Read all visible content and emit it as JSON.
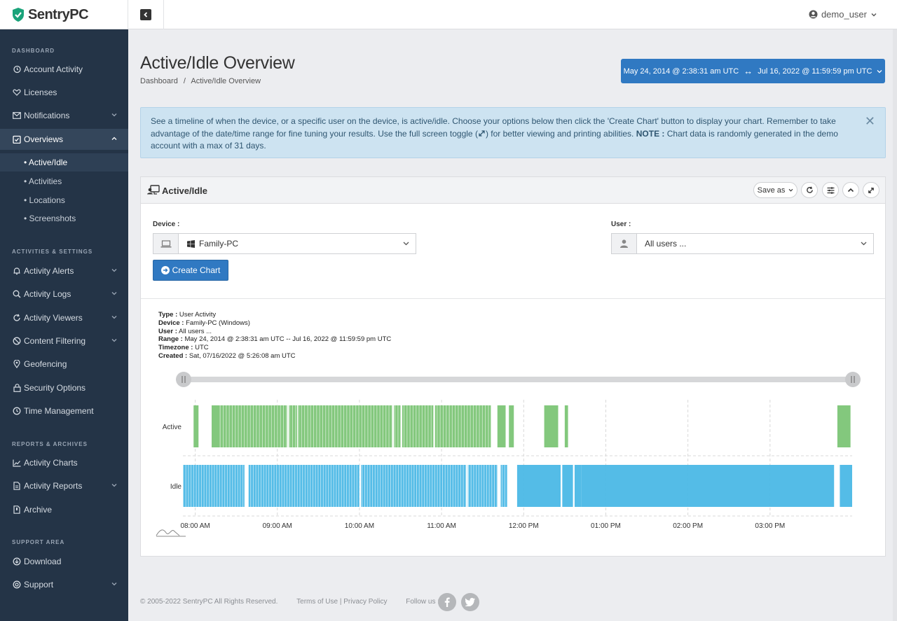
{
  "app": {
    "name": "SentryPC",
    "user": "demo_user"
  },
  "sidebar": {
    "sections": [
      "DASHBOARD",
      "ACTIVITIES & SETTINGS",
      "REPORTS & ARCHIVES",
      "SUPPORT AREA"
    ],
    "items": [
      {
        "label": "Account Activity",
        "icon": "history-icon"
      },
      {
        "label": "Licenses",
        "icon": "heart-icon"
      },
      {
        "label": "Notifications",
        "icon": "envelope-icon"
      },
      {
        "label": "Overviews",
        "icon": "clipboard-check-icon"
      },
      {
        "label": "Activity Alerts",
        "icon": "bell-icon"
      },
      {
        "label": "Activity Logs",
        "icon": "search-icon"
      },
      {
        "label": "Activity Viewers",
        "icon": "refresh-icon"
      },
      {
        "label": "Content Filtering",
        "icon": "ban-icon"
      },
      {
        "label": "Geofencing",
        "icon": "map-marker-icon"
      },
      {
        "label": "Security Options",
        "icon": "lock-icon"
      },
      {
        "label": "Time Management",
        "icon": "clock-icon"
      },
      {
        "label": "Activity Charts",
        "icon": "chart-line-icon"
      },
      {
        "label": "Activity Reports",
        "icon": "file-icon"
      },
      {
        "label": "Archive",
        "icon": "file-archive-icon"
      },
      {
        "label": "Download",
        "icon": "download-icon"
      },
      {
        "label": "Support",
        "icon": "support-icon"
      }
    ],
    "subitems": [
      "• Active/Idle",
      "• Activities",
      "• Locations",
      "• Screenshots"
    ]
  },
  "page": {
    "title": "Active/Idle Overview",
    "breadcrumb": [
      "Dashboard",
      "/",
      "Active/Idle Overview"
    ],
    "date_start": "May 24, 2014 @ 2:38:31 am UTC",
    "date_arrow": "↔",
    "date_end": "Jul 16, 2022 @ 11:59:59 pm UTC"
  },
  "alert": {
    "text1": "See a timeline of when the device, or a specific user on the device, is active/idle.  Choose your options below then click the 'Create Chart' button to display your chart.  Remember to take advantage of the date/time range for fine tuning your results.  Use the full screen toggle (",
    "text2": ") for better viewing and printing abilities.  ",
    "note_label": "NOTE :",
    "note_text": " Chart data is randomly generated in the demo account with a max of 31 days."
  },
  "panel": {
    "title": "Active/Idle",
    "save_as": "Save as",
    "device_label": "Device :",
    "device_value": "Family-PC",
    "user_label": "User :",
    "user_value": "All users ...",
    "create_button": "Create Chart"
  },
  "meta": [
    {
      "k": "Type :",
      "v": " User Activity"
    },
    {
      "k": "Device :",
      "v": " Family-PC (Windows)"
    },
    {
      "k": "User :",
      "v": " All users ..."
    },
    {
      "k": "Range :",
      "v": " May 24, 2014 @ 2:38:31 am UTC -- Jul 16, 2022 @ 11:59:59 pm UTC"
    },
    {
      "k": "Timezone :",
      "v": " UTC"
    },
    {
      "k": "Created :",
      "v": " Sat, 07/16/2022 @ 5:26:08 am UTC"
    }
  ],
  "chart_data": {
    "type": "timeline",
    "rows": [
      "Active",
      "Idle"
    ],
    "x_ticks": [
      "08:00 AM",
      "09:00 AM",
      "10:00 AM",
      "11:00 AM",
      "12:00 PM",
      "01:00 PM",
      "02:00 PM",
      "03:00 PM"
    ],
    "x_range_hours": [
      7.85,
      16.0
    ],
    "colors": {
      "Active": "#7cc576",
      "Idle": "#4bb8e6"
    },
    "active_ranges": [
      [
        7.98,
        8.04
      ],
      [
        8.2,
        8.3
      ],
      [
        8.3,
        9.12
      ],
      [
        9.14,
        9.24
      ],
      [
        9.25,
        9.38
      ],
      [
        9.38,
        10.4
      ],
      [
        10.42,
        10.5
      ],
      [
        10.52,
        10.9
      ],
      [
        10.92,
        11.1
      ],
      [
        11.1,
        11.6
      ],
      [
        11.68,
        11.78
      ],
      [
        11.82,
        11.88
      ],
      [
        12.25,
        12.42
      ],
      [
        12.5,
        12.54
      ],
      [
        15.82,
        15.98
      ]
    ],
    "idle_ranges": [
      [
        7.85,
        8.6
      ],
      [
        8.65,
        10.0
      ],
      [
        10.02,
        11.3
      ],
      [
        11.32,
        11.68
      ],
      [
        11.72,
        11.8
      ],
      [
        11.92,
        12.45
      ],
      [
        12.47,
        12.6
      ],
      [
        12.62,
        12.7
      ],
      [
        12.7,
        15.78
      ],
      [
        15.85,
        16.0
      ]
    ]
  },
  "footer": {
    "copyright": "© 2005-2022 SentryPC All Rights Reserved.",
    "terms": "Terms of Use",
    "sep": "|",
    "privacy": "Privacy Policy",
    "follow": "Follow us :"
  }
}
